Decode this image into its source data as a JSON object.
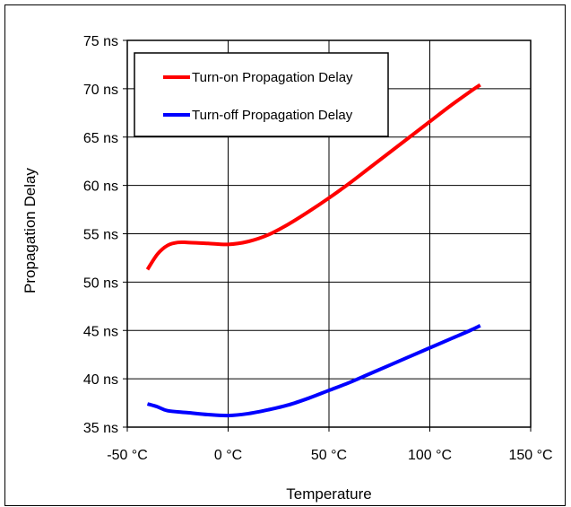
{
  "chart_data": {
    "type": "line",
    "xlabel": "Temperature",
    "ylabel": "Propagation Delay",
    "xlim": [
      -50,
      150
    ],
    "ylim": [
      35,
      75
    ],
    "xticks": [
      -50,
      0,
      50,
      100,
      150
    ],
    "yticks": [
      35,
      40,
      45,
      50,
      55,
      60,
      65,
      70,
      75
    ],
    "xtick_labels": [
      "-50 °C",
      "0 °C",
      "50 °C",
      "100 °C",
      "150 °C"
    ],
    "ytick_labels": [
      "35 ns",
      "40 ns",
      "45 ns",
      "50 ns",
      "55 ns",
      "60 ns",
      "65 ns",
      "70 ns",
      "75 ns"
    ],
    "grid": true,
    "legend_position": "top-left",
    "series": [
      {
        "name": "Turn-on Propagation Delay",
        "color": "#ff0000",
        "x": [
          -40,
          -35,
          -30,
          -25,
          -20,
          -10,
          0,
          10,
          20,
          30,
          40,
          50,
          60,
          70,
          80,
          90,
          100,
          110,
          120,
          125
        ],
        "y": [
          51.3,
          52.9,
          53.8,
          54.1,
          54.1,
          54.0,
          53.9,
          54.2,
          54.9,
          56.0,
          57.3,
          58.7,
          60.2,
          61.8,
          63.4,
          65.0,
          66.6,
          68.2,
          69.7,
          70.4
        ]
      },
      {
        "name": "Turn-off Propagation Delay",
        "color": "#0000ff",
        "x": [
          -40,
          -35,
          -30,
          -20,
          -10,
          0,
          10,
          20,
          30,
          40,
          50,
          60,
          70,
          80,
          90,
          100,
          110,
          120,
          125
        ],
        "y": [
          37.4,
          37.1,
          36.7,
          36.5,
          36.3,
          36.2,
          36.4,
          36.8,
          37.3,
          38.0,
          38.8,
          39.6,
          40.5,
          41.4,
          42.3,
          43.2,
          44.1,
          45.0,
          45.5
        ]
      }
    ]
  }
}
